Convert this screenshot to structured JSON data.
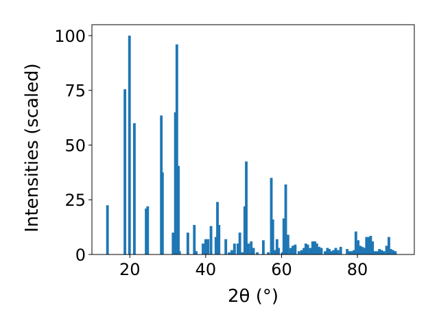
{
  "chart_data": {
    "type": "bar",
    "xlabel": "2θ (°)",
    "ylabel": "Intensities (scaled)",
    "xlim": [
      10,
      95
    ],
    "ylim": [
      0,
      105
    ],
    "x_ticks": [
      20,
      40,
      60,
      80
    ],
    "y_ticks": [
      0,
      25,
      50,
      75,
      100
    ],
    "x_tick_labels": [
      "20",
      "40",
      "60",
      "80"
    ],
    "y_tick_labels": [
      "0",
      "25",
      "50",
      "75",
      "100"
    ],
    "grid": false,
    "bar_color": "#1f77b4",
    "bar_width_deg": 0.7,
    "x": [
      14.1,
      18.7,
      19.9,
      21.2,
      24.3,
      24.7,
      28.3,
      28.6,
      31.4,
      32.0,
      32.4,
      32.8,
      33.1,
      35.3,
      37.0,
      37.5,
      39.3,
      40.0,
      40.6,
      41.4,
      42.7,
      43.1,
      43.5,
      45.3,
      46.2,
      46.9,
      47.6,
      48.5,
      49.0,
      49.6,
      50.3,
      50.7,
      51.3,
      52.0,
      52.6,
      53.6,
      55.2,
      56.5,
      57.3,
      57.7,
      58.3,
      58.8,
      59.2,
      60.2,
      60.6,
      61.1,
      61.7,
      62.4,
      63.0,
      63.6,
      64.6,
      65.3,
      65.9,
      66.4,
      66.9,
      67.6,
      68.2,
      68.8,
      69.3,
      69.9,
      70.5,
      71.5,
      72.1,
      72.6,
      73.2,
      73.7,
      74.3,
      74.9,
      75.6,
      77.3,
      77.9,
      78.5,
      79.1,
      79.6,
      80.2,
      80.7,
      81.3,
      81.8,
      82.4,
      82.9,
      83.5,
      84.0,
      84.6,
      85.2,
      85.8,
      86.4,
      87.0,
      87.7,
      88.3,
      88.8,
      89.4,
      90.0
    ],
    "values": [
      22.5,
      75.5,
      100.0,
      60.0,
      21.0,
      22.0,
      63.5,
      37.5,
      10.0,
      65.0,
      96.0,
      40.5,
      1.5,
      10.0,
      13.5,
      1.5,
      5.0,
      7.0,
      7.0,
      13.0,
      8.0,
      24.0,
      13.5,
      7.0,
      1.0,
      2.0,
      5.0,
      5.0,
      10.0,
      1.0,
      22.0,
      42.5,
      5.0,
      6.0,
      3.0,
      1.0,
      6.5,
      1.0,
      35.0,
      16.0,
      2.0,
      7.0,
      3.0,
      1.0,
      16.5,
      32.0,
      9.0,
      3.0,
      4.0,
      4.5,
      1.5,
      2.0,
      3.0,
      5.0,
      4.5,
      3.0,
      6.0,
      6.0,
      5.0,
      3.5,
      3.0,
      1.5,
      3.0,
      2.5,
      1.5,
      2.0,
      3.0,
      2.0,
      3.5,
      2.5,
      1.5,
      1.5,
      2.0,
      10.5,
      6.5,
      4.0,
      3.5,
      3.0,
      8.0,
      8.0,
      8.5,
      6.0,
      1.5,
      1.5,
      2.5,
      2.0,
      1.5,
      4.0,
      8.0,
      2.5,
      2.0,
      1.5
    ]
  }
}
